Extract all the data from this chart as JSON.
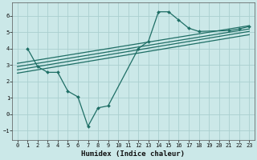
{
  "xlabel": "Humidex (Indice chaleur)",
  "background_color": "#cbe8e8",
  "grid_color": "#aacfcf",
  "line_color": "#1e6e65",
  "xlim": [
    -0.5,
    23.5
  ],
  "ylim": [
    -1.6,
    6.8
  ],
  "xticks": [
    0,
    1,
    2,
    3,
    4,
    5,
    6,
    7,
    8,
    9,
    10,
    11,
    12,
    13,
    14,
    15,
    16,
    17,
    18,
    19,
    20,
    21,
    22,
    23
  ],
  "yticks": [
    -1,
    0,
    1,
    2,
    3,
    4,
    5,
    6
  ],
  "main_line_x": [
    1,
    2,
    3,
    4,
    5,
    6,
    7,
    8,
    9,
    12,
    13,
    14,
    15,
    16,
    17,
    18,
    21,
    22,
    23
  ],
  "main_line_y": [
    4.0,
    2.9,
    2.55,
    2.55,
    1.4,
    1.05,
    -0.75,
    0.38,
    0.5,
    4.0,
    4.45,
    6.25,
    6.25,
    5.75,
    5.25,
    5.05,
    5.1,
    5.2,
    5.35
  ],
  "reg_lines": [
    {
      "x": [
        0,
        23
      ],
      "y": [
        2.5,
        4.85
      ]
    },
    {
      "x": [
        0,
        23
      ],
      "y": [
        2.7,
        5.05
      ]
    },
    {
      "x": [
        0,
        23
      ],
      "y": [
        2.9,
        5.2
      ]
    },
    {
      "x": [
        0,
        23
      ],
      "y": [
        3.1,
        5.4
      ]
    }
  ]
}
